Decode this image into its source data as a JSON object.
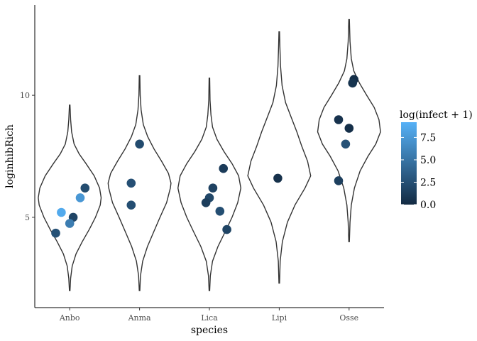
{
  "chart_data": {
    "type": "violin",
    "xlabel": "species",
    "ylabel": "loginhibRich",
    "categories": [
      "Anbo",
      "Anma",
      "Lica",
      "Lipi",
      "Osse"
    ],
    "ylim": [
      1.3,
      13.7
    ],
    "yticks": [
      5,
      10
    ],
    "grid": false,
    "violins": [
      {
        "name": "Anbo",
        "ymin": 2.0,
        "ymax": 9.6,
        "profile": [
          [
            2.0,
            0.01
          ],
          [
            2.5,
            0.03
          ],
          [
            3.0,
            0.08
          ],
          [
            3.5,
            0.2
          ],
          [
            4.0,
            0.4
          ],
          [
            4.5,
            0.62
          ],
          [
            5.0,
            0.82
          ],
          [
            5.5,
            0.97
          ],
          [
            5.8,
            1.0
          ],
          [
            6.2,
            0.95
          ],
          [
            6.7,
            0.78
          ],
          [
            7.2,
            0.52
          ],
          [
            7.6,
            0.3
          ],
          [
            8.0,
            0.14
          ],
          [
            8.5,
            0.06
          ],
          [
            9.0,
            0.03
          ],
          [
            9.6,
            0.01
          ]
        ]
      },
      {
        "name": "Anma",
        "ymin": 2.0,
        "ymax": 10.8,
        "profile": [
          [
            2.0,
            0.01
          ],
          [
            2.6,
            0.03
          ],
          [
            3.2,
            0.1
          ],
          [
            3.8,
            0.25
          ],
          [
            4.4,
            0.45
          ],
          [
            5.0,
            0.65
          ],
          [
            5.6,
            0.86
          ],
          [
            6.2,
            0.98
          ],
          [
            6.4,
            1.0
          ],
          [
            6.8,
            0.92
          ],
          [
            7.3,
            0.7
          ],
          [
            7.8,
            0.46
          ],
          [
            8.3,
            0.26
          ],
          [
            8.8,
            0.12
          ],
          [
            9.4,
            0.05
          ],
          [
            10.0,
            0.02
          ],
          [
            10.8,
            0.01
          ]
        ]
      },
      {
        "name": "Lica",
        "ymin": 2.0,
        "ymax": 10.7,
        "profile": [
          [
            2.0,
            0.01
          ],
          [
            2.6,
            0.03
          ],
          [
            3.2,
            0.1
          ],
          [
            3.8,
            0.27
          ],
          [
            4.4,
            0.5
          ],
          [
            5.0,
            0.72
          ],
          [
            5.6,
            0.9
          ],
          [
            6.2,
            1.0
          ],
          [
            6.7,
            0.93
          ],
          [
            7.2,
            0.72
          ],
          [
            7.7,
            0.46
          ],
          [
            8.2,
            0.24
          ],
          [
            8.7,
            0.1
          ],
          [
            9.2,
            0.05
          ],
          [
            9.8,
            0.02
          ],
          [
            10.7,
            0.01
          ]
        ]
      },
      {
        "name": "Lipi",
        "ymin": 2.3,
        "ymax": 12.6,
        "profile": [
          [
            2.3,
            0.01
          ],
          [
            3.2,
            0.03
          ],
          [
            4.0,
            0.1
          ],
          [
            4.8,
            0.26
          ],
          [
            5.5,
            0.5
          ],
          [
            6.2,
            0.82
          ],
          [
            6.7,
            1.0
          ],
          [
            7.3,
            0.9
          ],
          [
            7.9,
            0.72
          ],
          [
            8.5,
            0.56
          ],
          [
            9.1,
            0.38
          ],
          [
            9.7,
            0.2
          ],
          [
            10.4,
            0.09
          ],
          [
            11.2,
            0.04
          ],
          [
            12.0,
            0.02
          ],
          [
            12.6,
            0.01
          ]
        ]
      },
      {
        "name": "Osse",
        "ymin": 4.0,
        "ymax": 13.1,
        "profile": [
          [
            4.0,
            0.01
          ],
          [
            4.8,
            0.03
          ],
          [
            5.5,
            0.07
          ],
          [
            6.2,
            0.17
          ],
          [
            6.9,
            0.35
          ],
          [
            7.5,
            0.6
          ],
          [
            8.0,
            0.85
          ],
          [
            8.5,
            1.0
          ],
          [
            9.0,
            0.95
          ],
          [
            9.5,
            0.8
          ],
          [
            10.0,
            0.56
          ],
          [
            10.5,
            0.33
          ],
          [
            11.0,
            0.15
          ],
          [
            11.5,
            0.07
          ],
          [
            12.2,
            0.03
          ],
          [
            13.1,
            0.01
          ]
        ]
      }
    ],
    "points": [
      {
        "species": "Anbo",
        "dx": 0.22,
        "y": 6.2,
        "infect": 2.3
      },
      {
        "species": "Anbo",
        "dx": 0.15,
        "y": 5.8,
        "infect": 7.4
      },
      {
        "species": "Anbo",
        "dx": -0.12,
        "y": 5.2,
        "infect": 8.7
      },
      {
        "species": "Anbo",
        "dx": 0.05,
        "y": 5.0,
        "infect": 1.8
      },
      {
        "species": "Anbo",
        "dx": 0.0,
        "y": 4.75,
        "infect": 5.6
      },
      {
        "species": "Anbo",
        "dx": -0.2,
        "y": 4.35,
        "infect": 2.6
      },
      {
        "species": "Anma",
        "dx": 0.0,
        "y": 8.0,
        "infect": 2.2
      },
      {
        "species": "Anma",
        "dx": -0.12,
        "y": 6.4,
        "infect": 2.5
      },
      {
        "species": "Anma",
        "dx": -0.12,
        "y": 5.5,
        "infect": 2.4
      },
      {
        "species": "Lica",
        "dx": 0.2,
        "y": 7.0,
        "infect": 1.1
      },
      {
        "species": "Lica",
        "dx": 0.05,
        "y": 6.2,
        "infect": 1.6
      },
      {
        "species": "Lica",
        "dx": 0.0,
        "y": 5.8,
        "infect": 1.9
      },
      {
        "species": "Lica",
        "dx": -0.05,
        "y": 5.6,
        "infect": 1.3
      },
      {
        "species": "Lica",
        "dx": 0.15,
        "y": 5.25,
        "infect": 2.4
      },
      {
        "species": "Lica",
        "dx": 0.25,
        "y": 4.5,
        "infect": 1.7
      },
      {
        "species": "Lipi",
        "dx": -0.02,
        "y": 6.6,
        "infect": 0.4
      },
      {
        "species": "Osse",
        "dx": 0.07,
        "y": 10.65,
        "infect": 0.2
      },
      {
        "species": "Osse",
        "dx": 0.05,
        "y": 10.5,
        "infect": 0.6
      },
      {
        "species": "Osse",
        "dx": -0.15,
        "y": 9.0,
        "infect": 0.5
      },
      {
        "species": "Osse",
        "dx": 0.0,
        "y": 8.65,
        "infect": 0.3
      },
      {
        "species": "Osse",
        "dx": -0.05,
        "y": 8.0,
        "infect": 2.6
      },
      {
        "species": "Osse",
        "dx": -0.15,
        "y": 6.5,
        "infect": 1.4
      }
    ],
    "legend": {
      "title": "log(infect + 1)",
      "placement": "right",
      "min": 0.0,
      "max": 9.2,
      "ticks": [
        0.0,
        2.5,
        5.0,
        7.5
      ],
      "tick_labels": [
        "0.0",
        "2.5",
        "5.0",
        "7.5"
      ],
      "low_color": "#132b43",
      "high_color": "#56b1f7"
    }
  }
}
